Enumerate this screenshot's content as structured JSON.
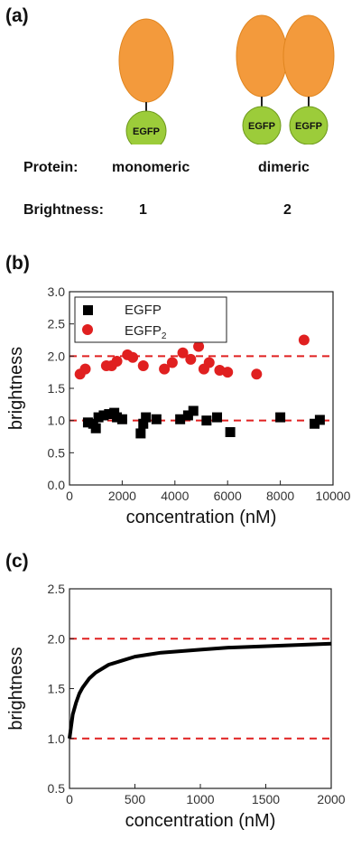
{
  "panel_a": {
    "label": "(a)",
    "protein_label": "Protein:",
    "brightness_label": "Brightness:",
    "monomer": {
      "name": "monomeric",
      "brightness": "1",
      "tag": "EGFP"
    },
    "dimer": {
      "name": "dimeric",
      "brightness": "2",
      "tags": [
        "EGFP",
        "EGFP"
      ]
    },
    "colors": {
      "protein": "#f39a3c",
      "egfp": "#9ccc3a"
    }
  },
  "panel_b": {
    "label": "(b)"
  },
  "panel_c": {
    "label": "(c)"
  },
  "chart_data": [
    {
      "type": "scatter",
      "panel": "(b)",
      "xlabel": "concentration (nM)",
      "ylabel": "brightness",
      "xlim": [
        0,
        10000
      ],
      "ylim": [
        0.0,
        3.0
      ],
      "xticks": [
        "0",
        "2000",
        "4000",
        "6000",
        "8000",
        "10000"
      ],
      "yticks": [
        "0.0",
        "0.5",
        "1.0",
        "1.5",
        "2.0",
        "2.5",
        "3.0"
      ],
      "legend_position": "top-left",
      "reference_lines": [
        1.0,
        2.0
      ],
      "reference_line_color": "#e02020",
      "series": [
        {
          "name": "EGFP",
          "marker": "square",
          "color": "#000000",
          "x": [
            700,
            900,
            1000,
            1100,
            1300,
            1500,
            1700,
            1800,
            2000,
            2700,
            2800,
            2900,
            3300,
            4200,
            4500,
            4700,
            5200,
            5600,
            6100,
            8000,
            9300,
            9500
          ],
          "y": [
            0.97,
            0.95,
            0.88,
            1.05,
            1.08,
            1.1,
            1.12,
            1.05,
            1.02,
            0.8,
            0.95,
            1.05,
            1.02,
            1.02,
            1.08,
            1.15,
            1.0,
            1.05,
            0.82,
            1.05,
            0.95,
            1.01
          ]
        },
        {
          "name": "EGFP",
          "name_subscript": "2",
          "marker": "circle",
          "color": "#e02020",
          "x": [
            400,
            600,
            1400,
            1600,
            1800,
            2200,
            2400,
            2800,
            3600,
            3900,
            4300,
            4600,
            4900,
            5100,
            5300,
            5700,
            6000,
            7100,
            8900
          ],
          "y": [
            1.72,
            1.8,
            1.85,
            1.85,
            1.92,
            2.02,
            1.98,
            1.85,
            1.8,
            1.9,
            2.05,
            1.95,
            2.15,
            1.8,
            1.9,
            1.78,
            1.75,
            1.72,
            2.25
          ]
        }
      ]
    },
    {
      "type": "line",
      "panel": "(c)",
      "xlabel": "concentration (nM)",
      "ylabel": "brightness",
      "xlim": [
        0,
        2000
      ],
      "ylim": [
        0.5,
        2.5
      ],
      "xticks": [
        "0",
        "500",
        "1000",
        "1500",
        "2000"
      ],
      "yticks": [
        "0.5",
        "1.0",
        "1.5",
        "2.0",
        "2.5"
      ],
      "reference_lines": [
        1.0,
        2.0
      ],
      "reference_line_color": "#e02020",
      "series": [
        {
          "color": "#000000",
          "x": [
            0,
            25,
            50,
            75,
            100,
            150,
            200,
            250,
            300,
            400,
            500,
            600,
            700,
            800,
            1000,
            1200,
            1400,
            1600,
            1800,
            2000
          ],
          "y": [
            1.0,
            1.24,
            1.36,
            1.45,
            1.51,
            1.6,
            1.66,
            1.7,
            1.74,
            1.78,
            1.82,
            1.84,
            1.86,
            1.87,
            1.89,
            1.91,
            1.92,
            1.93,
            1.94,
            1.95
          ]
        }
      ]
    }
  ]
}
